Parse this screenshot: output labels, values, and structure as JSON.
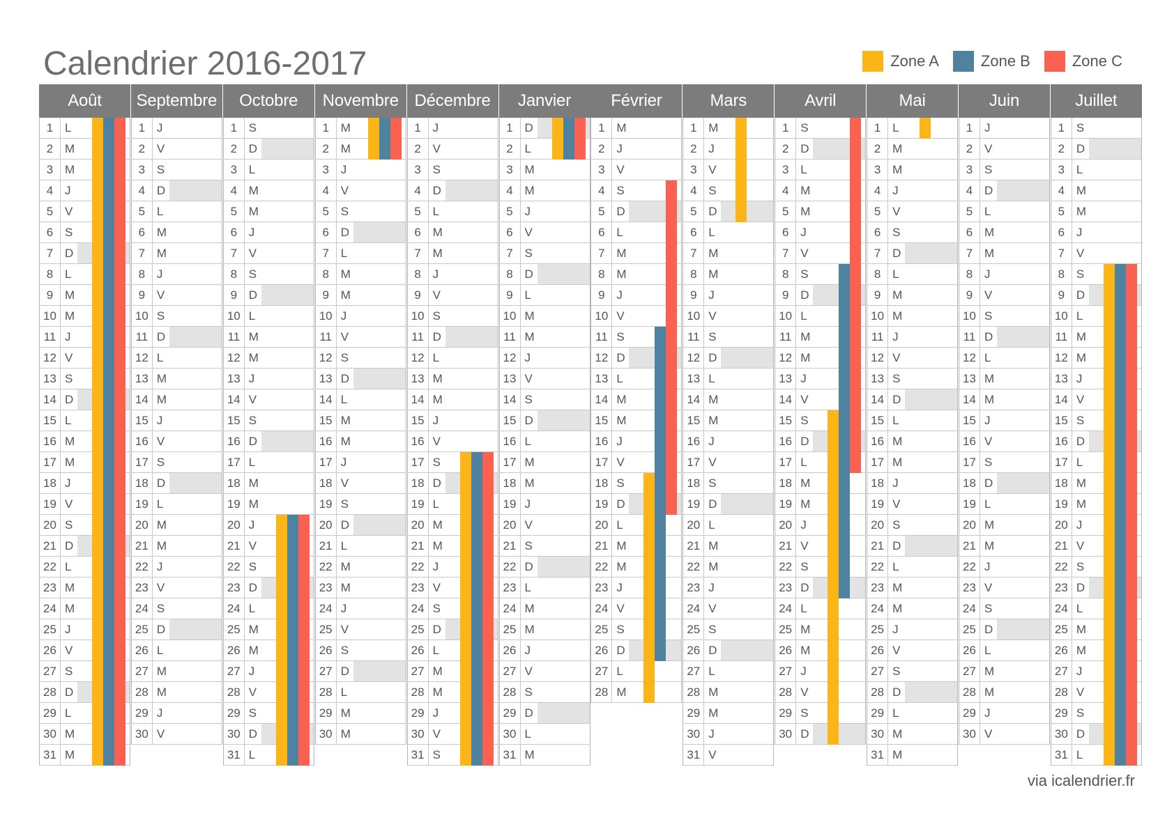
{
  "title": "Calendrier 2016-2017",
  "credit": "via icalendrier.fr",
  "legend": [
    {
      "zone": "A",
      "label": "Zone A",
      "color": "#FBB516"
    },
    {
      "zone": "B",
      "label": "Zone B",
      "color": "#4E829E"
    },
    {
      "zone": "C",
      "label": "Zone C",
      "color": "#FA6150"
    }
  ],
  "months": [
    {
      "name": "Août",
      "year": 2016,
      "month": 8,
      "days": 31,
      "letters": [
        "L",
        "M",
        "M",
        "J",
        "V",
        "S",
        "D",
        "L",
        "M",
        "M",
        "J",
        "V",
        "S",
        "D",
        "L",
        "M",
        "M",
        "J",
        "V",
        "S",
        "D",
        "L",
        "M",
        "M",
        "J",
        "V",
        "S",
        "D",
        "L",
        "M",
        "M"
      ],
      "vacations": {
        "A": [
          [
            1,
            31
          ]
        ],
        "B": [
          [
            1,
            31
          ]
        ],
        "C": [
          [
            1,
            31
          ]
        ]
      }
    },
    {
      "name": "Septembre",
      "year": 2016,
      "month": 9,
      "days": 30,
      "letters": [
        "J",
        "V",
        "S",
        "D",
        "L",
        "M",
        "M",
        "J",
        "V",
        "S",
        "D",
        "L",
        "M",
        "M",
        "J",
        "V",
        "S",
        "D",
        "L",
        "M",
        "M",
        "J",
        "V",
        "S",
        "D",
        "L",
        "M",
        "M",
        "J",
        "V"
      ],
      "vacations": {
        "A": [],
        "B": [],
        "C": []
      }
    },
    {
      "name": "Octobre",
      "year": 2016,
      "month": 10,
      "days": 31,
      "letters": [
        "S",
        "D",
        "L",
        "M",
        "M",
        "J",
        "V",
        "S",
        "D",
        "L",
        "M",
        "M",
        "J",
        "V",
        "S",
        "D",
        "L",
        "M",
        "M",
        "J",
        "V",
        "S",
        "D",
        "L",
        "M",
        "M",
        "J",
        "V",
        "S",
        "D",
        "L"
      ],
      "vacations": {
        "A": [
          [
            20,
            31
          ]
        ],
        "B": [
          [
            20,
            31
          ]
        ],
        "C": [
          [
            20,
            31
          ]
        ]
      }
    },
    {
      "name": "Novembre",
      "year": 2016,
      "month": 11,
      "days": 30,
      "letters": [
        "M",
        "M",
        "J",
        "V",
        "S",
        "D",
        "L",
        "M",
        "M",
        "J",
        "V",
        "S",
        "D",
        "L",
        "M",
        "M",
        "J",
        "V",
        "S",
        "D",
        "L",
        "M",
        "M",
        "J",
        "V",
        "S",
        "D",
        "L",
        "M",
        "M"
      ],
      "vacations": {
        "A": [
          [
            1,
            2
          ]
        ],
        "B": [
          [
            1,
            2
          ]
        ],
        "C": [
          [
            1,
            2
          ]
        ]
      }
    },
    {
      "name": "Décembre",
      "year": 2016,
      "month": 12,
      "days": 31,
      "letters": [
        "J",
        "V",
        "S",
        "D",
        "L",
        "M",
        "M",
        "J",
        "V",
        "S",
        "D",
        "L",
        "M",
        "M",
        "J",
        "V",
        "S",
        "D",
        "L",
        "M",
        "M",
        "J",
        "V",
        "S",
        "D",
        "L",
        "M",
        "M",
        "J",
        "V",
        "S"
      ],
      "vacations": {
        "A": [
          [
            17,
            31
          ]
        ],
        "B": [
          [
            17,
            31
          ]
        ],
        "C": [
          [
            17,
            31
          ]
        ]
      }
    },
    {
      "name": "Janvier",
      "year": 2017,
      "month": 1,
      "days": 31,
      "letters": [
        "D",
        "L",
        "M",
        "M",
        "J",
        "V",
        "S",
        "D",
        "L",
        "M",
        "M",
        "J",
        "V",
        "S",
        "D",
        "L",
        "M",
        "M",
        "J",
        "V",
        "S",
        "D",
        "L",
        "M",
        "M",
        "J",
        "V",
        "S",
        "D",
        "L",
        "M"
      ],
      "vacations": {
        "A": [
          [
            1,
            2
          ]
        ],
        "B": [
          [
            1,
            2
          ]
        ],
        "C": [
          [
            1,
            2
          ]
        ]
      }
    },
    {
      "name": "Février",
      "year": 2017,
      "month": 2,
      "days": 28,
      "letters": [
        "M",
        "J",
        "V",
        "S",
        "D",
        "L",
        "M",
        "M",
        "J",
        "V",
        "S",
        "D",
        "L",
        "M",
        "M",
        "J",
        "V",
        "S",
        "D",
        "L",
        "M",
        "M",
        "J",
        "V",
        "S",
        "D",
        "L",
        "M"
      ],
      "vacations": {
        "A": [
          [
            18,
            28
          ]
        ],
        "B": [
          [
            11,
            26
          ]
        ],
        "C": [
          [
            4,
            19
          ]
        ]
      }
    },
    {
      "name": "Mars",
      "year": 2017,
      "month": 3,
      "days": 31,
      "letters": [
        "M",
        "J",
        "V",
        "S",
        "D",
        "L",
        "M",
        "M",
        "J",
        "V",
        "S",
        "D",
        "L",
        "M",
        "M",
        "J",
        "V",
        "S",
        "D",
        "L",
        "M",
        "M",
        "J",
        "V",
        "S",
        "D",
        "L",
        "M",
        "M",
        "J",
        "V"
      ],
      "vacations": {
        "A": [
          [
            1,
            5
          ]
        ],
        "B": [],
        "C": []
      }
    },
    {
      "name": "Avril",
      "year": 2017,
      "month": 4,
      "days": 30,
      "letters": [
        "S",
        "D",
        "L",
        "M",
        "M",
        "J",
        "V",
        "S",
        "D",
        "L",
        "M",
        "M",
        "J",
        "V",
        "S",
        "D",
        "L",
        "M",
        "M",
        "J",
        "V",
        "S",
        "D",
        "L",
        "M",
        "M",
        "J",
        "V",
        "S",
        "D"
      ],
      "vacations": {
        "A": [
          [
            15,
            30
          ]
        ],
        "B": [
          [
            8,
            23
          ]
        ],
        "C": [
          [
            1,
            17
          ]
        ]
      }
    },
    {
      "name": "Mai",
      "year": 2017,
      "month": 5,
      "days": 31,
      "letters": [
        "L",
        "M",
        "M",
        "J",
        "V",
        "S",
        "D",
        "L",
        "M",
        "M",
        "J",
        "V",
        "S",
        "D",
        "L",
        "M",
        "M",
        "J",
        "V",
        "S",
        "D",
        "L",
        "M",
        "M",
        "J",
        "V",
        "S",
        "D",
        "L",
        "M",
        "M"
      ],
      "vacations": {
        "A": [
          [
            1,
            1
          ]
        ],
        "B": [],
        "C": []
      }
    },
    {
      "name": "Juin",
      "year": 2017,
      "month": 6,
      "days": 30,
      "letters": [
        "J",
        "V",
        "S",
        "D",
        "L",
        "M",
        "M",
        "J",
        "V",
        "S",
        "D",
        "L",
        "M",
        "M",
        "J",
        "V",
        "S",
        "D",
        "L",
        "M",
        "M",
        "J",
        "V",
        "S",
        "D",
        "L",
        "M",
        "M",
        "J",
        "V"
      ],
      "vacations": {
        "A": [],
        "B": [],
        "C": []
      }
    },
    {
      "name": "Juillet",
      "year": 2017,
      "month": 7,
      "days": 31,
      "letters": [
        "S",
        "D",
        "L",
        "M",
        "M",
        "J",
        "V",
        "S",
        "D",
        "L",
        "M",
        "M",
        "J",
        "V",
        "S",
        "D",
        "L",
        "M",
        "M",
        "J",
        "V",
        "S",
        "D",
        "L",
        "M",
        "M",
        "J",
        "V",
        "S",
        "D",
        "L"
      ],
      "vacations": {
        "A": [
          [
            8,
            31
          ]
        ],
        "B": [
          [
            8,
            31
          ]
        ],
        "C": [
          [
            8,
            31
          ]
        ]
      }
    }
  ]
}
